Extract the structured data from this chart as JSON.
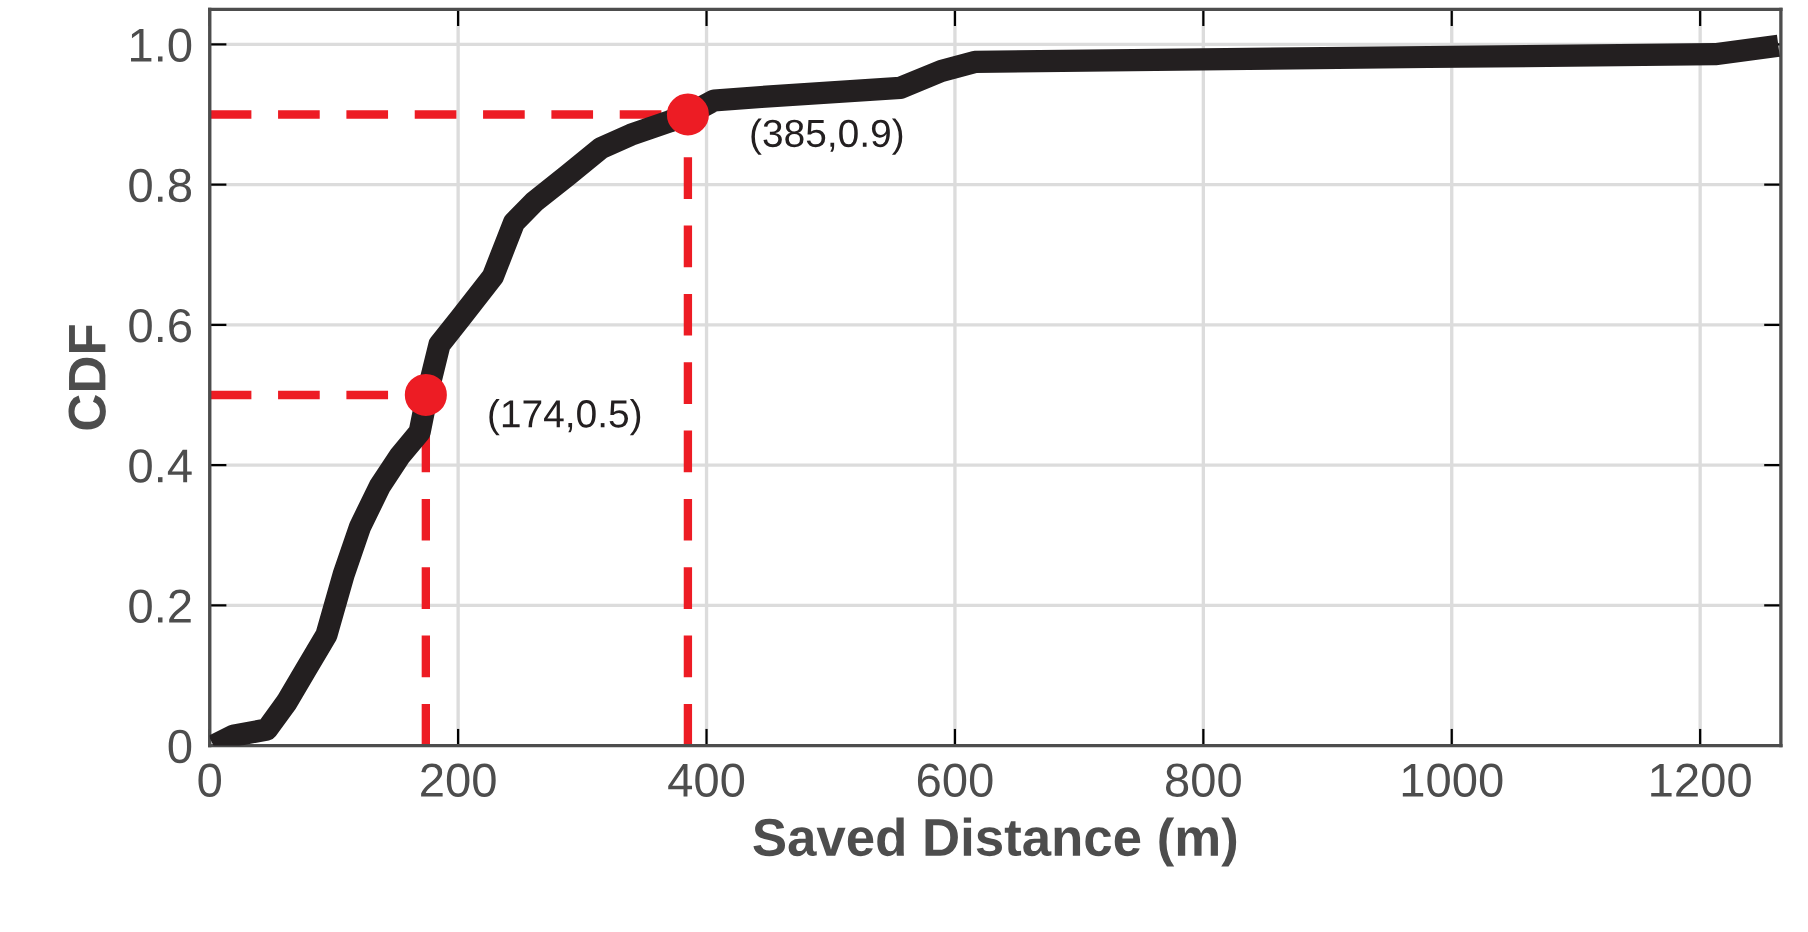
{
  "chart_data": {
    "type": "line",
    "xlabel": "Saved Distance (m)",
    "ylabel": "CDF",
    "xlim": [
      0,
      1265
    ],
    "ylim": [
      0,
      1.05
    ],
    "xticks": [
      0,
      200,
      400,
      600,
      800,
      1000,
      1200
    ],
    "yticks": [
      0,
      0.2,
      0.4,
      0.6,
      0.8,
      {
        "value": 1,
        "label": "1.0"
      }
    ],
    "grid": true,
    "series": [
      {
        "color": "#231f20",
        "line_style": "solid",
        "x": [
          3,
          19,
          46,
          62,
          78,
          94,
          108,
          121,
          137,
          153,
          169,
          175,
          185,
          202,
          228,
          245,
          261,
          288,
          315,
          339,
          370,
          385,
          406,
          444,
          556,
          589,
          616,
          981,
          1212,
          1263
        ],
        "values": [
          0,
          0.014,
          0.023,
          0.062,
          0.11,
          0.158,
          0.245,
          0.312,
          0.37,
          0.413,
          0.447,
          0.5,
          0.572,
          0.61,
          0.669,
          0.746,
          0.775,
          0.813,
          0.852,
          0.871,
          0.89,
          0.9,
          0.92,
          0.925,
          0.938,
          0.962,
          0.975,
          0.982,
          0.986,
          0.998
        ]
      },
      {
        "color": "#ed1c24",
        "line_style": "dashed",
        "x": [
          0,
          174
        ],
        "values": [
          0.5,
          0.5
        ]
      },
      {
        "color": "#ed1c24",
        "line_style": "dashed",
        "x": [
          174,
          174
        ],
        "values": [
          0,
          0.5
        ]
      },
      {
        "color": "#ed1c24",
        "line_style": "dashed",
        "x": [
          0,
          385
        ],
        "values": [
          0.9,
          0.9
        ]
      },
      {
        "color": "#ed1c24",
        "line_style": "dashed",
        "x": [
          385,
          385
        ],
        "values": [
          0,
          0.9
        ]
      },
      {
        "type": "scatter",
        "color": "#ed1c24",
        "marker": "circle",
        "x": [
          174,
          385
        ],
        "values": [
          0.5,
          0.9
        ]
      }
    ],
    "annotations": [
      {
        "text": "(174,0.5)",
        "x": 174,
        "y": 0.5
      },
      {
        "text": "(385,0.9)",
        "x": 385,
        "y": 0.9
      }
    ]
  }
}
